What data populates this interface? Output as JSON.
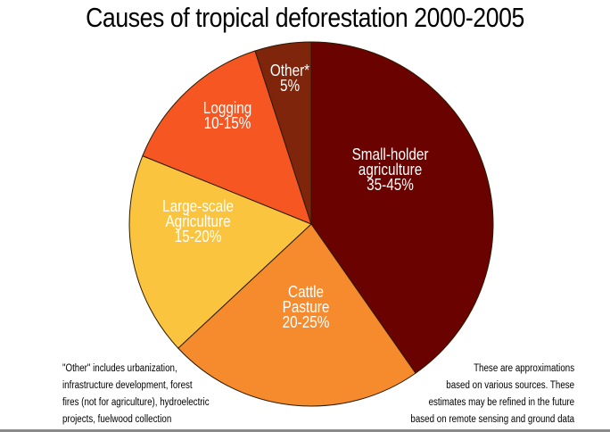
{
  "title": "Causes of tropical deforestation 2000-2005",
  "chart_data": {
    "type": "pie",
    "title": "Causes of tropical deforestation 2000-2005",
    "start_angle_deg": 0,
    "direction": "clockwise",
    "slices": [
      {
        "name": "Small-holder agriculture",
        "label_lines": [
          "Small-holder",
          "agriculture",
          "35-45%"
        ],
        "range": "35-45%",
        "value": 40,
        "color": "#6a0300"
      },
      {
        "name": "Cattle Pasture",
        "label_lines": [
          "Cattle",
          "Pasture",
          "20-25%"
        ],
        "range": "20-25%",
        "value": 22.5,
        "color": "#f68b2e"
      },
      {
        "name": "Large-scale Agriculture",
        "label_lines": [
          "Large-scale",
          "Agriculture",
          "15-20%"
        ],
        "range": "15-20%",
        "value": 17.5,
        "color": "#fbc43f"
      },
      {
        "name": "Logging",
        "label_lines": [
          "Logging",
          "10-15%"
        ],
        "range": "10-15%",
        "value": 14,
        "color": "#f55622"
      },
      {
        "name": "Other*",
        "label_lines": [
          "Other*",
          "5%"
        ],
        "range": "5%",
        "value": 5,
        "color": "#7e250b"
      }
    ],
    "annotations": [
      "\"Other\" includes urbanization, infrastructure development, forest fires (not for agriculture), hydroelectric projects, fuelwood collection",
      "These are approximations based on various sources. These estimates may be refined in the future based on remote sensing and ground data"
    ]
  },
  "notes": {
    "left": [
      "\"Other\" includes urbanization,",
      "infrastructure development, forest",
      "fires (not for agriculture), hydroelectric",
      "projects, fuelwood collection"
    ],
    "right": [
      "These are approximations",
      "based on various sources. These",
      "estimates may be refined in the future",
      "based on remote sensing and ground data"
    ]
  }
}
